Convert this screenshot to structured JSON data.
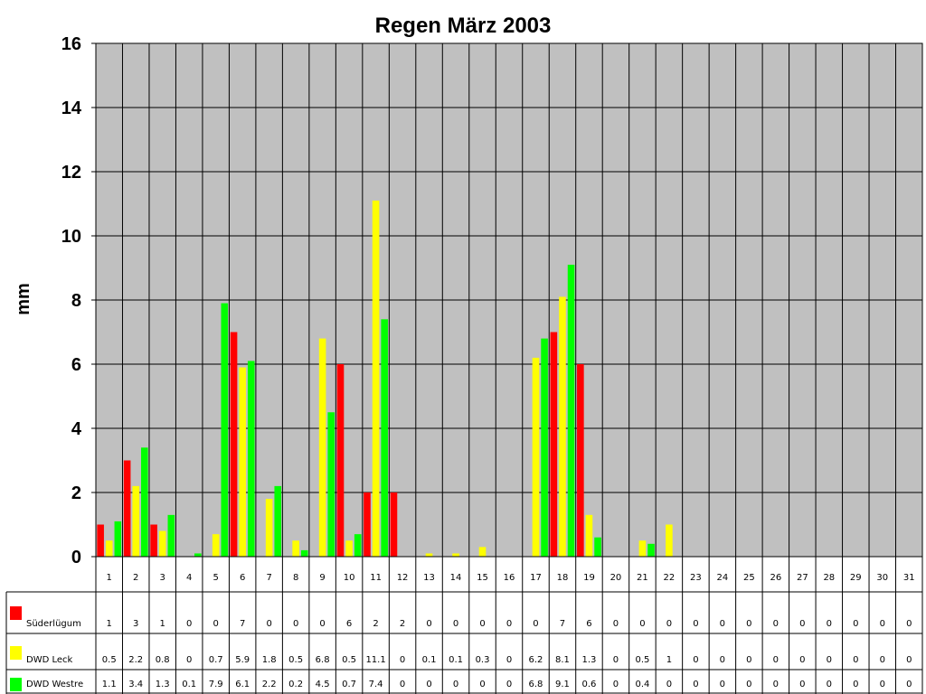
{
  "chart_data": {
    "type": "bar",
    "title": "Regen März 2003",
    "xlabel": "",
    "ylabel": "mm",
    "ylim": [
      0,
      16
    ],
    "yticks": [
      "0",
      "2",
      "4",
      "6",
      "8",
      "10",
      "12",
      "14",
      "16"
    ],
    "grid": true,
    "data_table": true,
    "categories": [
      "1",
      "2",
      "3",
      "4",
      "5",
      "6",
      "7",
      "8",
      "9",
      "10",
      "11",
      "12",
      "13",
      "14",
      "15",
      "16",
      "17",
      "18",
      "19",
      "20",
      "21",
      "22",
      "23",
      "24",
      "25",
      "26",
      "27",
      "28",
      "29",
      "30",
      "31"
    ],
    "series": [
      {
        "name": "Süderlügum",
        "color": "#ff0000",
        "values": [
          1,
          3,
          1,
          0,
          0,
          7,
          0,
          0,
          0,
          6,
          2,
          2,
          0,
          0,
          0,
          0,
          0,
          7,
          6,
          0,
          0,
          0,
          0,
          0,
          0,
          0,
          0,
          0,
          0,
          0,
          0
        ],
        "labels": [
          "1",
          "3",
          "1",
          "0",
          "0",
          "7",
          "0",
          "0",
          "0",
          "6",
          "2",
          "2",
          "0",
          "0",
          "0",
          "0",
          "0",
          "7",
          "6",
          "0",
          "0",
          "0",
          "0",
          "0",
          "0",
          "0",
          "0",
          "0",
          "0",
          "0",
          "0"
        ]
      },
      {
        "name": "DWD Leck",
        "color": "#ffff00",
        "values": [
          0.5,
          2.2,
          0.8,
          0,
          0.7,
          5.9,
          1.8,
          0.5,
          6.8,
          0.5,
          11.1,
          0,
          0.1,
          0.1,
          0.3,
          0,
          6.2,
          8.1,
          1.3,
          0,
          0.5,
          1,
          0,
          0,
          0,
          0,
          0,
          0,
          0,
          0,
          0
        ],
        "labels": [
          "0.5",
          "2.2",
          "0.8",
          "0",
          "0.7",
          "5.9",
          "1.8",
          "0.5",
          "6.8",
          "0.5",
          "11.1",
          "0",
          "0.1",
          "0.1",
          "0.3",
          "0",
          "6.2",
          "8.1",
          "1.3",
          "0",
          "0.5",
          "1",
          "0",
          "0",
          "0",
          "0",
          "0",
          "0",
          "0",
          "0",
          "0"
        ]
      },
      {
        "name": "DWD Westre",
        "color": "#00ff00",
        "values": [
          1.1,
          3.4,
          1.3,
          0.1,
          7.9,
          6.1,
          2.2,
          0.2,
          4.5,
          0.7,
          7.4,
          0,
          0,
          0,
          0,
          0,
          6.8,
          9.1,
          0.6,
          0,
          0.4,
          0,
          0,
          0,
          0,
          0,
          0,
          0,
          0,
          0,
          0
        ],
        "labels": [
          "1.1",
          "3.4",
          "1.3",
          "0.1",
          "7.9",
          "6.1",
          "2.2",
          "0.2",
          "4.5",
          "0.7",
          "7.4",
          "0",
          "0",
          "0",
          "0",
          "0",
          "6.8",
          "9.1",
          "0.6",
          "0",
          "0.4",
          "0",
          "0",
          "0",
          "0",
          "0",
          "0",
          "0",
          "0",
          "0",
          "0"
        ]
      }
    ],
    "colors": {
      "plot_background": "#c0c0c0",
      "grid": "#000000",
      "text": "#000000"
    }
  }
}
